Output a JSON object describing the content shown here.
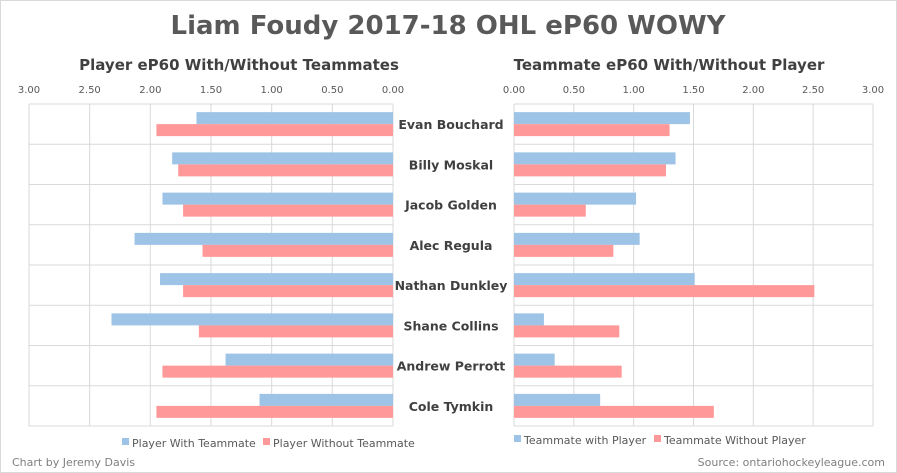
{
  "title": "Liam Foudy 2017-18 OHL eP60 WOWY",
  "footer": {
    "credit": "Chart by Jeremy Davis",
    "source": "Source: ontariohockeyleague.com"
  },
  "players": [
    "Evan Bouchard",
    "Billy Moskal",
    "Jacob Golden",
    "Alec Regula",
    "Nathan Dunkley",
    "Shane Collins",
    "Andrew Perrott",
    "Cole Tymkin"
  ],
  "colors": {
    "with": "#9dc3e6",
    "without": "#ff9999",
    "grid": "#d9d9d9"
  },
  "chart_data": [
    {
      "type": "bar",
      "orientation": "horizontal",
      "title": "Player eP60 With/Without Teammates",
      "x_reversed": true,
      "xlim": [
        0,
        3
      ],
      "ticks": [
        "3.00",
        "2.50",
        "2.00",
        "1.50",
        "1.00",
        "0.50",
        "0.00"
      ],
      "tick_values": [
        3.0,
        2.5,
        2.0,
        1.5,
        1.0,
        0.5,
        0.0
      ],
      "categories": [
        "Evan Bouchard",
        "Billy Moskal",
        "Jacob Golden",
        "Alec Regula",
        "Nathan Dunkley",
        "Shane Collins",
        "Andrew Perrott",
        "Cole Tymkin"
      ],
      "series": [
        {
          "name": "Player With Teammate",
          "values": [
            1.62,
            1.82,
            1.9,
            2.13,
            1.92,
            2.32,
            1.38,
            1.1
          ]
        },
        {
          "name": "Player Without Teammate",
          "values": [
            1.95,
            1.77,
            1.73,
            1.57,
            1.73,
            1.6,
            1.9,
            1.95
          ]
        }
      ],
      "legend_position": "bottom"
    },
    {
      "type": "bar",
      "orientation": "horizontal",
      "title": "Teammate eP60 With/Without Player",
      "xlim": [
        0,
        3
      ],
      "ticks": [
        "0.00",
        "0.50",
        "1.00",
        "1.50",
        "2.00",
        "2.50",
        "3.00"
      ],
      "tick_values": [
        0.0,
        0.5,
        1.0,
        1.5,
        2.0,
        2.5,
        3.0
      ],
      "categories": [
        "Evan Bouchard",
        "Billy Moskal",
        "Jacob Golden",
        "Alec Regula",
        "Nathan Dunkley",
        "Shane Collins",
        "Andrew Perrott",
        "Cole Tymkin"
      ],
      "series": [
        {
          "name": "Teammate with Player",
          "values": [
            1.47,
            1.35,
            1.02,
            1.05,
            1.51,
            0.25,
            0.34,
            0.72
          ]
        },
        {
          "name": "Teammate Without Player",
          "values": [
            1.3,
            1.27,
            0.6,
            0.83,
            2.51,
            0.88,
            0.9,
            1.67
          ]
        }
      ],
      "legend_position": "bottom"
    }
  ]
}
